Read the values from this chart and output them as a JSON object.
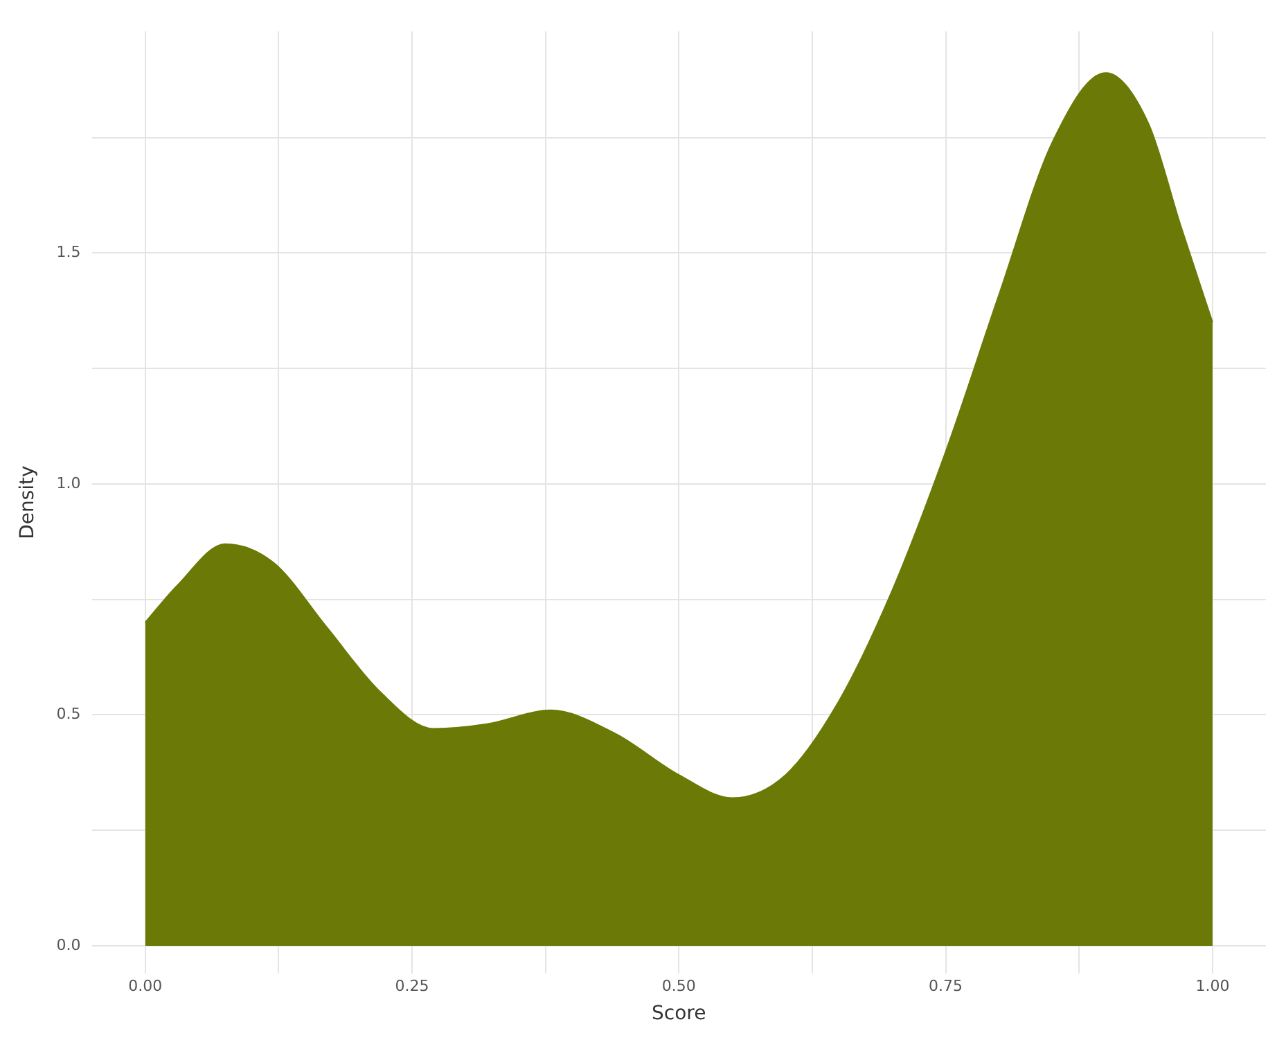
{
  "chart_data": {
    "type": "area",
    "xlabel": "Score",
    "ylabel": "Density",
    "x": [
      0,
      0.03,
      0.075,
      0.12,
      0.17,
      0.22,
      0.27,
      0.32,
      0.38,
      0.44,
      0.5,
      0.55,
      0.6,
      0.65,
      0.7,
      0.75,
      0.8,
      0.85,
      0.9,
      0.94,
      0.97,
      1
    ],
    "series": [
      {
        "color": "#6b7a06",
        "values": [
          0.7,
          0.78,
          0.87,
          0.83,
          0.69,
          0.55,
          0.47,
          0.48,
          0.51,
          0.46,
          0.37,
          0.32,
          0.37,
          0.53,
          0.77,
          1.07,
          1.41,
          1.74,
          1.89,
          1.78,
          1.56,
          1.35
        ]
      }
    ],
    "xlim": [
      -0.05,
      1.05
    ],
    "ylim": [
      -0.06,
      1.98
    ],
    "xticks": [
      {
        "value": 0,
        "label": "0.00"
      },
      {
        "value": 0.125,
        "label": null
      },
      {
        "value": 0.25,
        "label": "0.25"
      },
      {
        "value": 0.375,
        "label": null
      },
      {
        "value": 0.5,
        "label": "0.50"
      },
      {
        "value": 0.625,
        "label": null
      },
      {
        "value": 0.75,
        "label": "0.75"
      },
      {
        "value": 0.875,
        "label": null
      },
      {
        "value": 1,
        "label": "1.00"
      }
    ],
    "yticks": [
      {
        "value": 0,
        "label": "0.0"
      },
      {
        "value": 0.25,
        "label": null
      },
      {
        "value": 0.5,
        "label": "0.5"
      },
      {
        "value": 0.75,
        "label": null
      },
      {
        "value": 1,
        "label": "1.0"
      },
      {
        "value": 1.25,
        "label": null
      },
      {
        "value": 1.5,
        "label": "1.5"
      },
      {
        "value": 1.75,
        "label": null
      }
    ],
    "grid": true,
    "legend": false,
    "marker": "none"
  }
}
